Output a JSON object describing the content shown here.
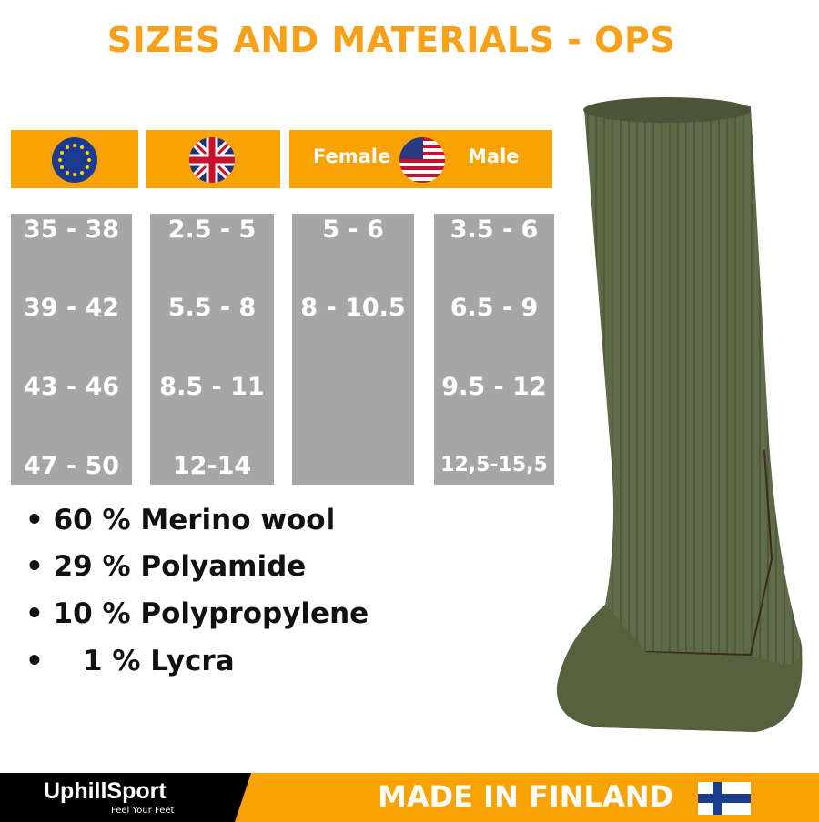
{
  "title": "SIZES AND MATERIALS - OPS",
  "headers": {
    "eu_flag": "eu-flag-icon",
    "uk_flag": "uk-flag-icon",
    "us_flag": "us-flag-icon",
    "female": "Female",
    "male": "Male"
  },
  "sizes": {
    "eu": [
      "35 - 38",
      "39 - 42",
      "43 - 46",
      "47 - 50"
    ],
    "uk": [
      "2.5 - 5",
      "5.5 - 8",
      "8.5 - 11",
      "12-14"
    ],
    "us_female": [
      "5 - 6",
      "8 - 10.5"
    ],
    "us_male": [
      "3.5 - 6",
      "6.5 - 9",
      "9.5 - 12",
      "12,5-15,5"
    ]
  },
  "materials": [
    "• 60 % Merino wool",
    "• 29 % Polyamide",
    "• 10 % Polypropylene",
    "•    1 % Lycra"
  ],
  "footer": {
    "brand": "UphillSport",
    "tagline": "Feel Your Feet",
    "made_in": "MADE IN FINLAND"
  },
  "colors": {
    "accent": "#F8A204",
    "cell": "#A6A6A6",
    "sock": "#5E6A48"
  }
}
